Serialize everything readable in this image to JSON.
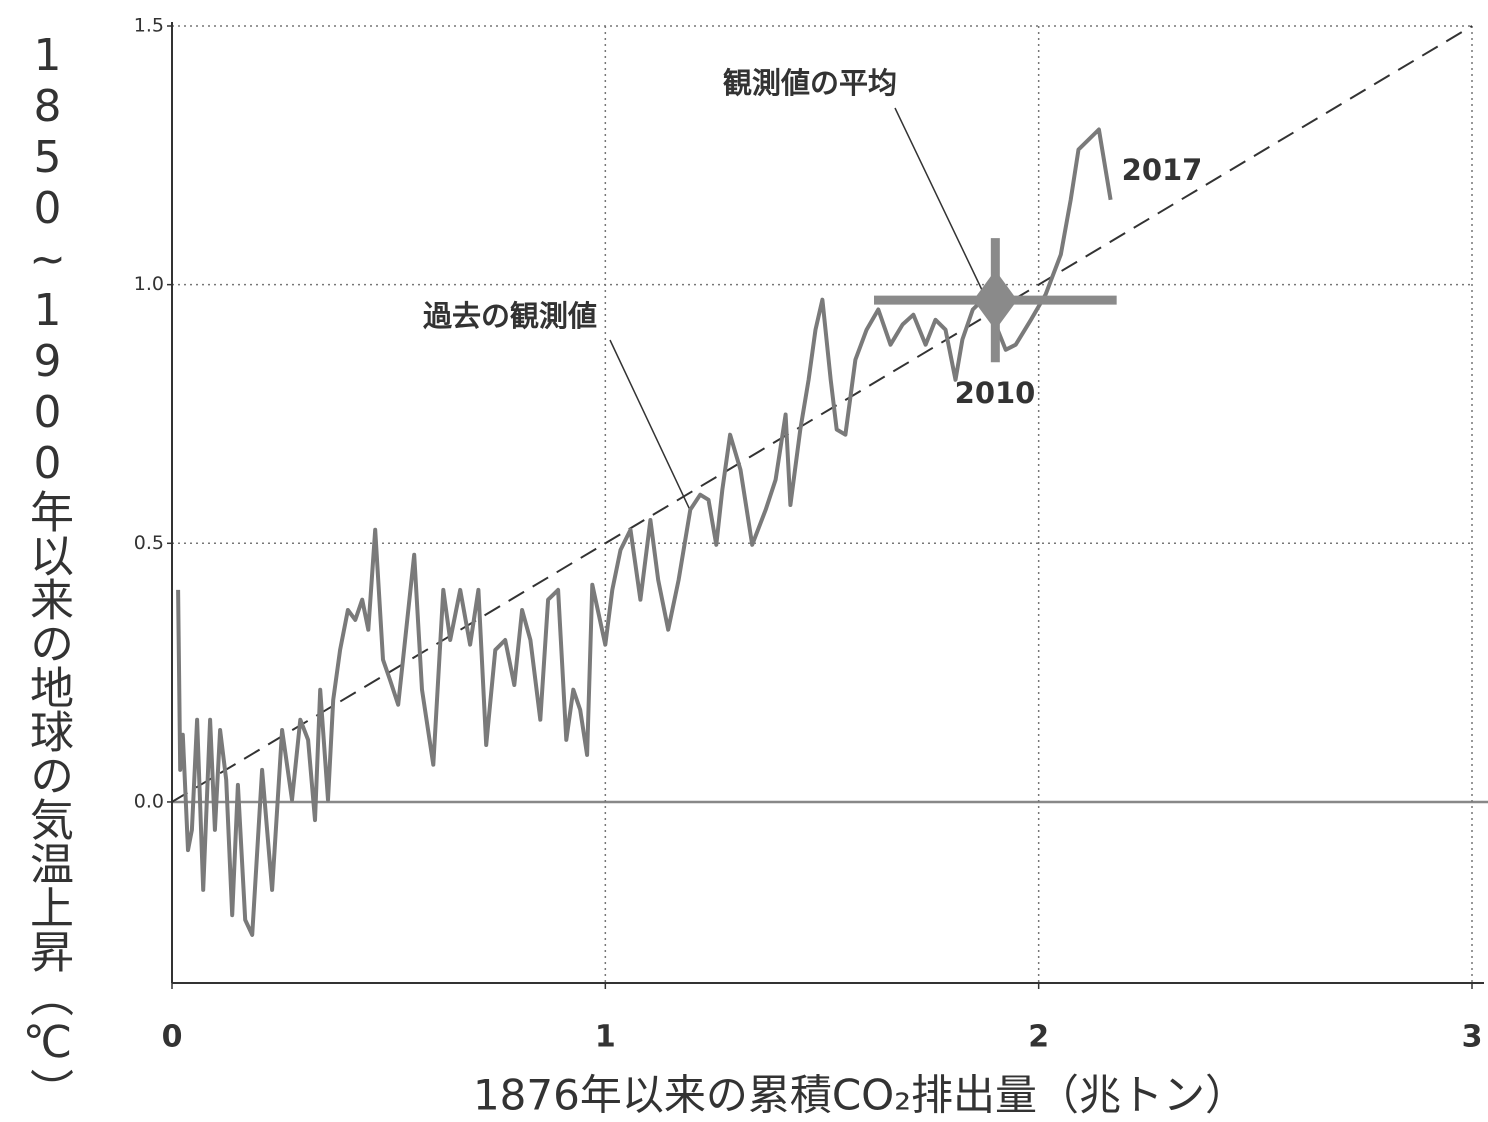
{
  "chart_data": {
    "type": "line",
    "y_label": "1850~1900年以来の地球の気温上昇（℃）",
    "x_label": "1876年以来の累積CO₂排出量（兆トン）",
    "xlim": [
      0,
      3
    ],
    "ylim": [
      -0.35,
      1.5
    ],
    "xticks": [
      0,
      1,
      2,
      3
    ],
    "yticks": [
      {
        "value": 0,
        "label": "0.0"
      },
      {
        "value": 0.5,
        "label": "0.5"
      },
      {
        "value": 1,
        "label": "1.0"
      },
      {
        "value": 1.5,
        "label": "1.5"
      }
    ],
    "grid": true,
    "color": "#7a7a7a",
    "observed": {
      "x": [
        0.014,
        0.019,
        0.025,
        0.037,
        0.046,
        0.058,
        0.072,
        0.088,
        0.099,
        0.111,
        0.125,
        0.139,
        0.152,
        0.169,
        0.185,
        0.208,
        0.231,
        0.254,
        0.277,
        0.296,
        0.314,
        0.33,
        0.342,
        0.36,
        0.372,
        0.388,
        0.406,
        0.423,
        0.439,
        0.453,
        0.469,
        0.487,
        0.503,
        0.522,
        0.538,
        0.559,
        0.577,
        0.603,
        0.626,
        0.642,
        0.665,
        0.688,
        0.707,
        0.725,
        0.746,
        0.769,
        0.79,
        0.808,
        0.827,
        0.85,
        0.868,
        0.891,
        0.91,
        0.926,
        0.942,
        0.958,
        0.97,
        1.0,
        1.016,
        1.035,
        1.058,
        1.081,
        1.104,
        1.122,
        1.145,
        1.169,
        1.196,
        1.219,
        1.238,
        1.256,
        1.27,
        1.288,
        1.312,
        1.339,
        1.37,
        1.393,
        1.416,
        1.427,
        1.45,
        1.469,
        1.485,
        1.501,
        1.52,
        1.534,
        1.554,
        1.577,
        1.603,
        1.63,
        1.658,
        1.686,
        1.711,
        1.739,
        1.762,
        1.785,
        1.808,
        1.824,
        1.848,
        1.871,
        1.896,
        1.924,
        1.947,
        1.982,
        2.016,
        2.051,
        2.074,
        2.092,
        2.139,
        2.166
      ],
      "values": [
        0.41,
        0.062,
        0.13,
        -0.093,
        -0.054,
        0.159,
        -0.17,
        0.159,
        -0.054,
        0.139,
        0.043,
        -0.219,
        0.033,
        -0.228,
        -0.257,
        0.062,
        -0.17,
        0.139,
        0.004,
        0.159,
        0.12,
        -0.035,
        0.217,
        0.004,
        0.197,
        0.294,
        0.371,
        0.352,
        0.391,
        0.333,
        0.526,
        0.275,
        0.236,
        0.188,
        0.313,
        0.478,
        0.217,
        0.072,
        0.41,
        0.313,
        0.41,
        0.304,
        0.41,
        0.11,
        0.294,
        0.313,
        0.226,
        0.371,
        0.313,
        0.159,
        0.391,
        0.41,
        0.12,
        0.217,
        0.178,
        0.091,
        0.42,
        0.304,
        0.41,
        0.487,
        0.526,
        0.391,
        0.545,
        0.429,
        0.333,
        0.429,
        0.565,
        0.594,
        0.584,
        0.497,
        0.603,
        0.71,
        0.642,
        0.497,
        0.565,
        0.623,
        0.749,
        0.574,
        0.72,
        0.816,
        0.913,
        0.971,
        0.816,
        0.72,
        0.71,
        0.855,
        0.913,
        0.952,
        0.884,
        0.923,
        0.942,
        0.884,
        0.932,
        0.913,
        0.816,
        0.894,
        0.952,
        0.971,
        0.932,
        0.874,
        0.884,
        0.932,
        0.981,
        1.058,
        1.164,
        1.261,
        1.3,
        1.164
      ]
    },
    "trend": {
      "x": [
        0,
        3
      ],
      "values": [
        0,
        1.5
      ]
    },
    "mean": {
      "x": 1.9,
      "y": 0.97,
      "xerr": 0.28,
      "yerr": 0.12,
      "color": "#8a8a8a"
    },
    "annotations": [
      "観測値の平均",
      "過去の観測値",
      "2010",
      "2017"
    ]
  }
}
